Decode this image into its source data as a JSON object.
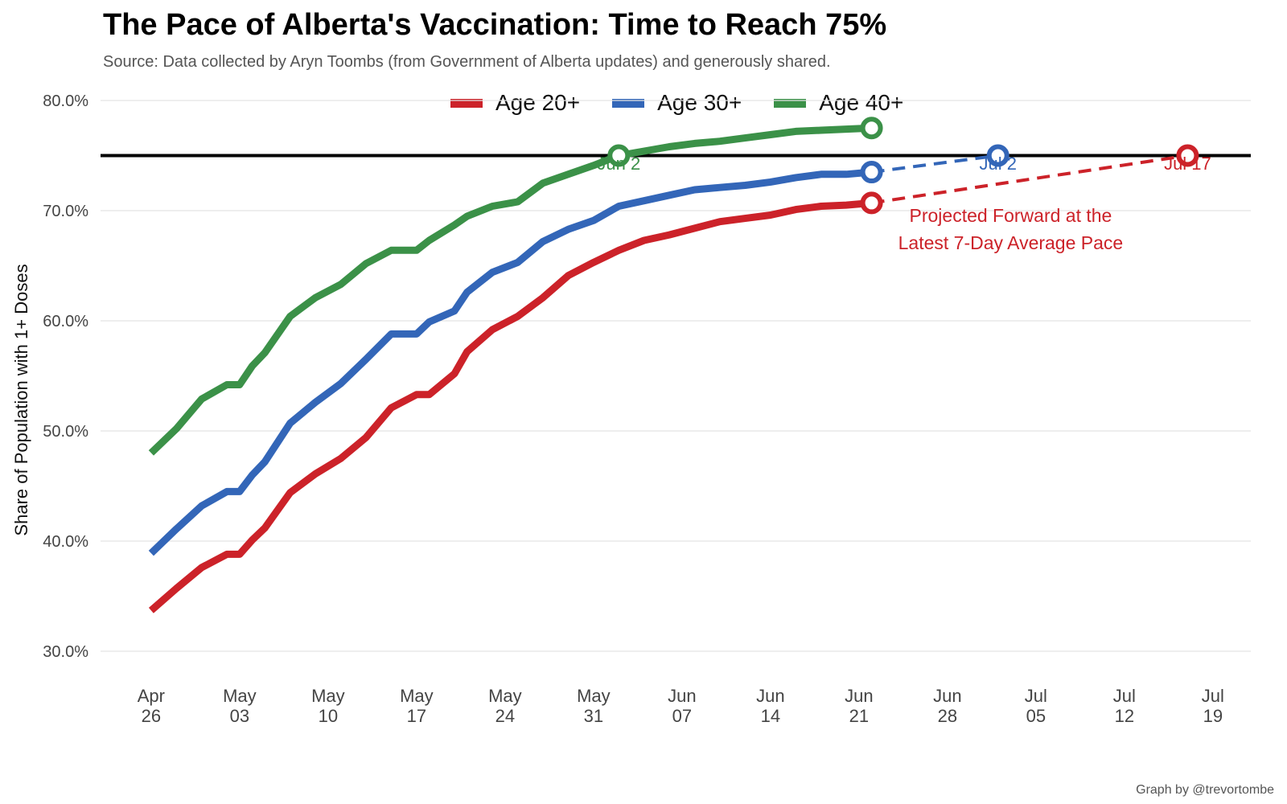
{
  "chart_data": {
    "type": "line",
    "title": "The Pace of Alberta's Vaccination: Time to Reach 75%",
    "subtitle": "Source: Data collected by Aryn Toombs (from Government of Alberta updates) and generously shared.",
    "ylabel": "Share of Population with 1+ Doses",
    "xlabel": "",
    "caption": "Graph by @trevortombe",
    "ylim": [
      30,
      80
    ],
    "y_ticks": [
      "30.0%",
      "40.0%",
      "50.0%",
      "60.0%",
      "70.0%",
      "80.0%"
    ],
    "y_tick_values": [
      30,
      40,
      50,
      60,
      70,
      80
    ],
    "xlim": [
      "2021-04-22",
      "2021-07-22"
    ],
    "x_ticks": [
      {
        "date": "2021-04-26",
        "line1": "Apr",
        "line2": "26"
      },
      {
        "date": "2021-05-03",
        "line1": "May",
        "line2": "03"
      },
      {
        "date": "2021-05-10",
        "line1": "May",
        "line2": "10"
      },
      {
        "date": "2021-05-17",
        "line1": "May",
        "line2": "17"
      },
      {
        "date": "2021-05-24",
        "line1": "May",
        "line2": "24"
      },
      {
        "date": "2021-05-31",
        "line1": "May",
        "line2": "31"
      },
      {
        "date": "2021-06-07",
        "line1": "Jun",
        "line2": "07"
      },
      {
        "date": "2021-06-14",
        "line1": "Jun",
        "line2": "14"
      },
      {
        "date": "2021-06-21",
        "line1": "Jun",
        "line2": "21"
      },
      {
        "date": "2021-06-28",
        "line1": "Jun",
        "line2": "28"
      },
      {
        "date": "2021-07-05",
        "line1": "Jul",
        "line2": "05"
      },
      {
        "date": "2021-07-12",
        "line1": "Jul",
        "line2": "12"
      },
      {
        "date": "2021-07-19",
        "line1": "Jul",
        "line2": "19"
      }
    ],
    "grid": true,
    "legend_position": "top",
    "target_line": 75,
    "series": [
      {
        "name": "Age 20+",
        "color": "#cc2229",
        "x": [
          "2021-04-26",
          "2021-04-28",
          "2021-04-30",
          "2021-05-02",
          "2021-05-03",
          "2021-05-04",
          "2021-05-05",
          "2021-05-07",
          "2021-05-09",
          "2021-05-11",
          "2021-05-13",
          "2021-05-15",
          "2021-05-17",
          "2021-05-18",
          "2021-05-20",
          "2021-05-21",
          "2021-05-23",
          "2021-05-25",
          "2021-05-27",
          "2021-05-29",
          "2021-05-31",
          "2021-06-02",
          "2021-06-04",
          "2021-06-06",
          "2021-06-08",
          "2021-06-10",
          "2021-06-12",
          "2021-06-14",
          "2021-06-16",
          "2021-06-18",
          "2021-06-20",
          "2021-06-22"
        ],
        "values": [
          33.7,
          35.7,
          37.6,
          38.8,
          38.8,
          40.1,
          41.2,
          44.4,
          46.1,
          47.5,
          49.4,
          52.1,
          53.3,
          53.3,
          55.2,
          57.2,
          59.2,
          60.4,
          62.1,
          64.1,
          65.3,
          66.4,
          67.3,
          67.8,
          68.4,
          69.0,
          69.3,
          69.6,
          70.1,
          70.4,
          70.5,
          70.7
        ],
        "projection": {
          "x": [
            "2021-06-22",
            "2021-07-17"
          ],
          "values": [
            70.7,
            75.0
          ]
        },
        "reach_date": "2021-07-17",
        "reach_label": "Jul 17"
      },
      {
        "name": "Age 30+",
        "color": "#3366b8",
        "x": [
          "2021-04-26",
          "2021-04-28",
          "2021-04-30",
          "2021-05-02",
          "2021-05-03",
          "2021-05-04",
          "2021-05-05",
          "2021-05-07",
          "2021-05-09",
          "2021-05-11",
          "2021-05-13",
          "2021-05-15",
          "2021-05-17",
          "2021-05-18",
          "2021-05-20",
          "2021-05-21",
          "2021-05-23",
          "2021-05-25",
          "2021-05-27",
          "2021-05-29",
          "2021-05-31",
          "2021-06-02",
          "2021-06-04",
          "2021-06-06",
          "2021-06-08",
          "2021-06-10",
          "2021-06-12",
          "2021-06-14",
          "2021-06-16",
          "2021-06-18",
          "2021-06-20",
          "2021-06-22"
        ],
        "values": [
          38.9,
          41.1,
          43.2,
          44.5,
          44.5,
          46.0,
          47.2,
          50.7,
          52.6,
          54.3,
          56.5,
          58.8,
          58.8,
          59.9,
          60.9,
          62.6,
          64.4,
          65.3,
          67.2,
          68.3,
          69.1,
          70.4,
          70.9,
          71.4,
          71.9,
          72.1,
          72.3,
          72.6,
          73.0,
          73.3,
          73.3,
          73.5
        ],
        "projection": {
          "x": [
            "2021-06-22",
            "2021-07-02"
          ],
          "values": [
            73.5,
            75.0
          ]
        },
        "reach_date": "2021-07-02",
        "reach_label": "Jul 2"
      },
      {
        "name": "Age 40+",
        "color": "#3b9148",
        "x": [
          "2021-04-26",
          "2021-04-28",
          "2021-04-30",
          "2021-05-02",
          "2021-05-03",
          "2021-05-04",
          "2021-05-05",
          "2021-05-07",
          "2021-05-09",
          "2021-05-11",
          "2021-05-13",
          "2021-05-15",
          "2021-05-17",
          "2021-05-18",
          "2021-05-20",
          "2021-05-21",
          "2021-05-23",
          "2021-05-25",
          "2021-05-27",
          "2021-05-29",
          "2021-05-31",
          "2021-06-02",
          "2021-06-04",
          "2021-06-06",
          "2021-06-08",
          "2021-06-10",
          "2021-06-12",
          "2021-06-14",
          "2021-06-16",
          "2021-06-18",
          "2021-06-20",
          "2021-06-22"
        ],
        "values": [
          48.0,
          50.2,
          52.9,
          54.2,
          54.2,
          55.9,
          57.1,
          60.4,
          62.1,
          63.3,
          65.2,
          66.4,
          66.4,
          67.3,
          68.7,
          69.5,
          70.4,
          70.8,
          72.5,
          73.3,
          74.1,
          75.0,
          75.4,
          75.8,
          76.1,
          76.3,
          76.6,
          76.9,
          77.2,
          77.3,
          77.4,
          77.5
        ],
        "reach_date": "2021-06-02",
        "reach_label": "Jun 2"
      }
    ],
    "annotation": {
      "lines": [
        "Projected Forward at the",
        "Latest 7-Day Average Pace"
      ],
      "color": "#cc2229",
      "anchor": {
        "date": "2021-07-03",
        "y": 69.7
      }
    }
  }
}
